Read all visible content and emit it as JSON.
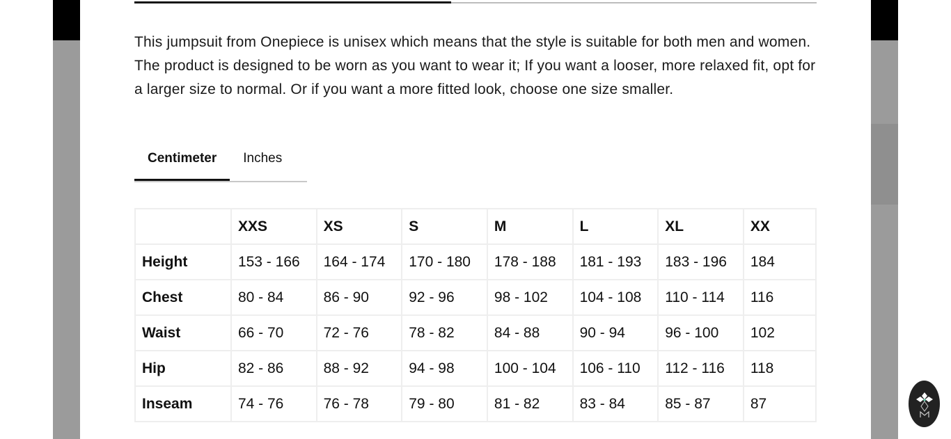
{
  "progress": {
    "value_percent": 46.4
  },
  "description": "This jumpsuit from Onepiece is unisex which means that the style is suitable for both men and women. The product is designed to be worn as you want to wear it; If you want a looser, more relaxed fit, opt for a larger size to normal. Or if you want a more fitted look, choose one size smaller.",
  "unit_tabs": [
    {
      "label": "Centimeter",
      "active": true
    },
    {
      "label": "Inches",
      "active": false
    }
  ],
  "size_table": {
    "headers": [
      "",
      "XXS",
      "XS",
      "S",
      "M",
      "L",
      "XL",
      "XX"
    ],
    "rows": [
      {
        "label": "Height",
        "values": [
          "153 - 166",
          "164 - 174",
          "170 - 180",
          "178 - 188",
          "181 - 193",
          "183 - 196",
          "184"
        ]
      },
      {
        "label": "Chest",
        "values": [
          "80 - 84",
          "86 - 90",
          "92 - 96",
          "98 - 102",
          "104 - 108",
          "110 - 114",
          "116"
        ]
      },
      {
        "label": "Waist",
        "values": [
          "66 - 70",
          "72 - 76",
          "78 - 82",
          "84 - 88",
          "90 - 94",
          "96 - 100",
          "102"
        ]
      },
      {
        "label": "Hip",
        "values": [
          "82 - 86",
          "88 - 92",
          "94 - 98",
          "100 - 104",
          "106 - 110",
          "112 - 116",
          "118"
        ]
      },
      {
        "label": "Inseam",
        "values": [
          "74 - 76",
          "76 - 78",
          "79 - 80",
          "81 - 82",
          "83 - 84",
          "85 - 87",
          "87"
        ]
      }
    ]
  },
  "chat_button": {
    "icon": "brand-logo-icon"
  },
  "colors": {
    "text": "#111111",
    "overlay": "#9b9b9b",
    "fab": "#222222",
    "accent": "#5fd3b0"
  }
}
